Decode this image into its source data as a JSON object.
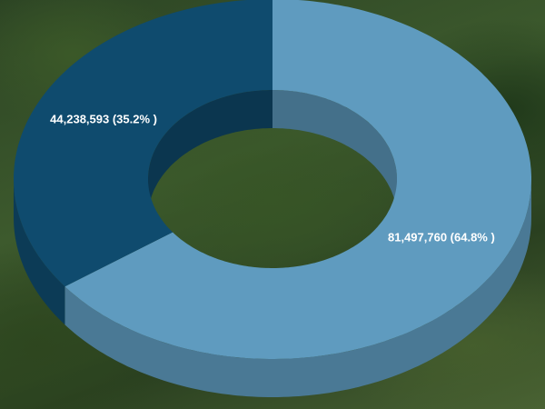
{
  "chart_data": {
    "type": "donut",
    "values": [
      81497760,
      44238593
    ],
    "value_labels": [
      "81,497,760 (64.8% )",
      "44,238,593 (35.2% )"
    ],
    "colors": [
      "#5f9bbf",
      "#0f4b6e"
    ]
  }
}
